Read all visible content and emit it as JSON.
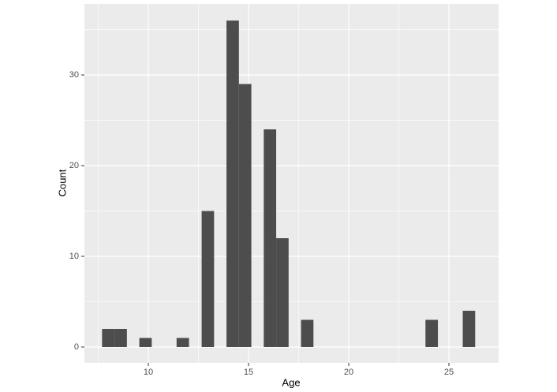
{
  "chart_data": {
    "type": "histogram",
    "x_label": "Age",
    "y_label": "Count",
    "bins": [
      7.69,
      8.31,
      8.93,
      9.55,
      10.17,
      10.79,
      11.41,
      12.03,
      12.66,
      13.28,
      13.9,
      14.52,
      15.14,
      15.76,
      16.38,
      17,
      17.62,
      18.24,
      18.86,
      19.48,
      20.1,
      20.72,
      21.34,
      21.97,
      22.59,
      23.21,
      23.83,
      24.45,
      25.07,
      25.69,
      26.31
    ],
    "values": [
      2,
      2,
      0,
      1,
      0,
      0,
      1,
      0,
      15,
      0,
      36,
      29,
      0,
      24,
      12,
      0,
      3,
      0,
      0,
      0,
      0,
      0,
      0,
      0,
      0,
      0,
      3,
      0,
      0,
      4
    ],
    "color": "#4d4d4d",
    "xlim": [
      6.81,
      27.48
    ],
    "xticks": [
      10,
      15,
      20,
      25
    ],
    "ylim": [
      -1.74,
      37.83
    ],
    "yticks": [
      0,
      10,
      20,
      30
    ],
    "grid": true
  }
}
